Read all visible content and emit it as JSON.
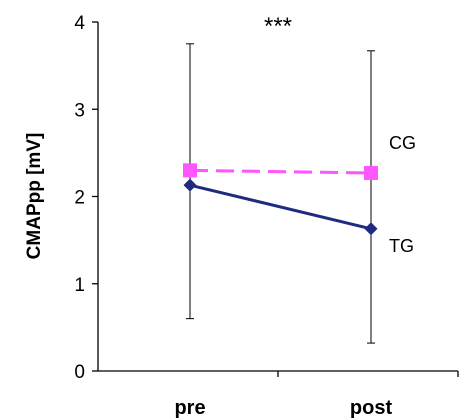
{
  "chart_data": {
    "type": "line",
    "title": "",
    "xlabel": "",
    "ylabel": "CMAPpp [mV]",
    "categories": [
      "pre",
      "post"
    ],
    "ylim": [
      0,
      4
    ],
    "yticks": [
      0,
      1,
      2,
      3,
      4
    ],
    "grid": false,
    "legend": "none",
    "series": [
      {
        "name": "CG",
        "values": [
          2.3,
          2.27
        ],
        "color": "#ff55ff",
        "line_style": "dashed",
        "marker": "square"
      },
      {
        "name": "TG",
        "values": [
          2.13,
          1.63
        ],
        "color": "#1f2a80",
        "line_style": "solid",
        "marker": "diamond"
      }
    ],
    "error_bars": [
      {
        "category": "pre",
        "low": 0.6,
        "high": 3.75
      },
      {
        "category": "post",
        "low": 0.32,
        "high": 3.67
      }
    ],
    "annotations": [
      "***"
    ]
  }
}
